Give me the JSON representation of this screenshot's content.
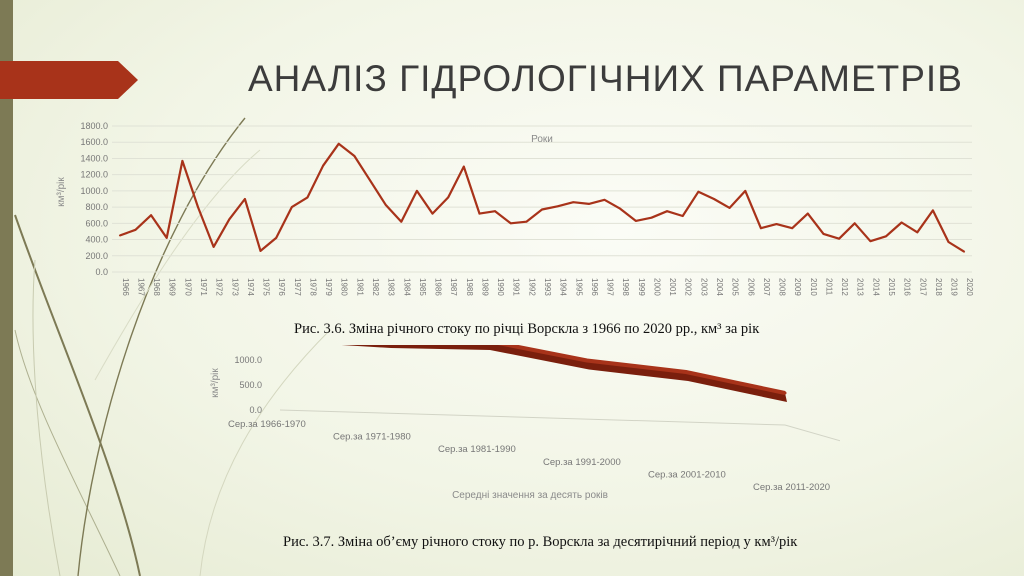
{
  "slide": {
    "title": "АНАЛІЗ ГІДРОЛОГІЧНИХ ПАРАМЕТРІВ",
    "accent_color": "#a8331a",
    "bar_color": "#7d7a55"
  },
  "chart_data": [
    {
      "type": "line",
      "title": "",
      "xlabel": "Роки",
      "ylabel": "км³/рік",
      "ylim": [
        0,
        1800
      ],
      "yticks": [
        "0.0",
        "200.0",
        "400.0",
        "600.0",
        "800.0",
        "1000.0",
        "1200.0",
        "1400.0",
        "1600.0",
        "1800.0"
      ],
      "grid": true,
      "color": "#a8331a",
      "x": [
        "1966",
        "1967",
        "1968",
        "1969",
        "1970",
        "1971",
        "1972",
        "1973",
        "1974",
        "1975",
        "1976",
        "1977",
        "1978",
        "1979",
        "1980",
        "1981",
        "1982",
        "1983",
        "1984",
        "1985",
        "1986",
        "1987",
        "1988",
        "1989",
        "1990",
        "1991",
        "1992",
        "1993",
        "1994",
        "1995",
        "1996",
        "1997",
        "1998",
        "1999",
        "2000",
        "2001",
        "2002",
        "2003",
        "2004",
        "2005",
        "2006",
        "2007",
        "2008",
        "2009",
        "2010",
        "2011",
        "2012",
        "2013",
        "2014",
        "2015",
        "2016",
        "2017",
        "2018",
        "2019",
        "2020"
      ],
      "values": [
        450,
        520,
        700,
        420,
        1370,
        800,
        310,
        650,
        900,
        260,
        420,
        800,
        920,
        1310,
        1580,
        1430,
        1130,
        830,
        620,
        1000,
        720,
        920,
        1300,
        720,
        750,
        600,
        620,
        770,
        810,
        860,
        840,
        890,
        780,
        630,
        670,
        750,
        690,
        990,
        900,
        790,
        1000,
        540,
        590,
        540,
        720,
        470,
        410,
        600,
        380,
        440,
        610,
        490,
        760,
        370,
        250
      ]
    },
    {
      "type": "area",
      "subtype": "3d-ribbon",
      "title": "",
      "xlabel": "Середні значення за десять років",
      "ylabel": "км³/рік",
      "ylim": [
        0,
        1000
      ],
      "yticks": [
        "0.0",
        "500.0",
        "1000.0"
      ],
      "color": "#a8331a",
      "categories": [
        "Сер.за 1966-1970",
        "Сер.за 1971-1980",
        "Сер.за 1981-1990",
        "Сер.за 1991-2000",
        "Сер.за 2001-2010",
        "Сер.за 2011-2020"
      ],
      "values": [
        700,
        780,
        940,
        750,
        720,
        500
      ]
    }
  ],
  "captions": {
    "fig1": "Рис. 3.6. Зміна річного стоку по річці Ворскла з 1966 по 2020 рр., км³ за рік",
    "fig2": "Рис. 3.7. Зміна об’єму річного стоку по р. Ворскла за десятирічний період у км³/рік"
  }
}
